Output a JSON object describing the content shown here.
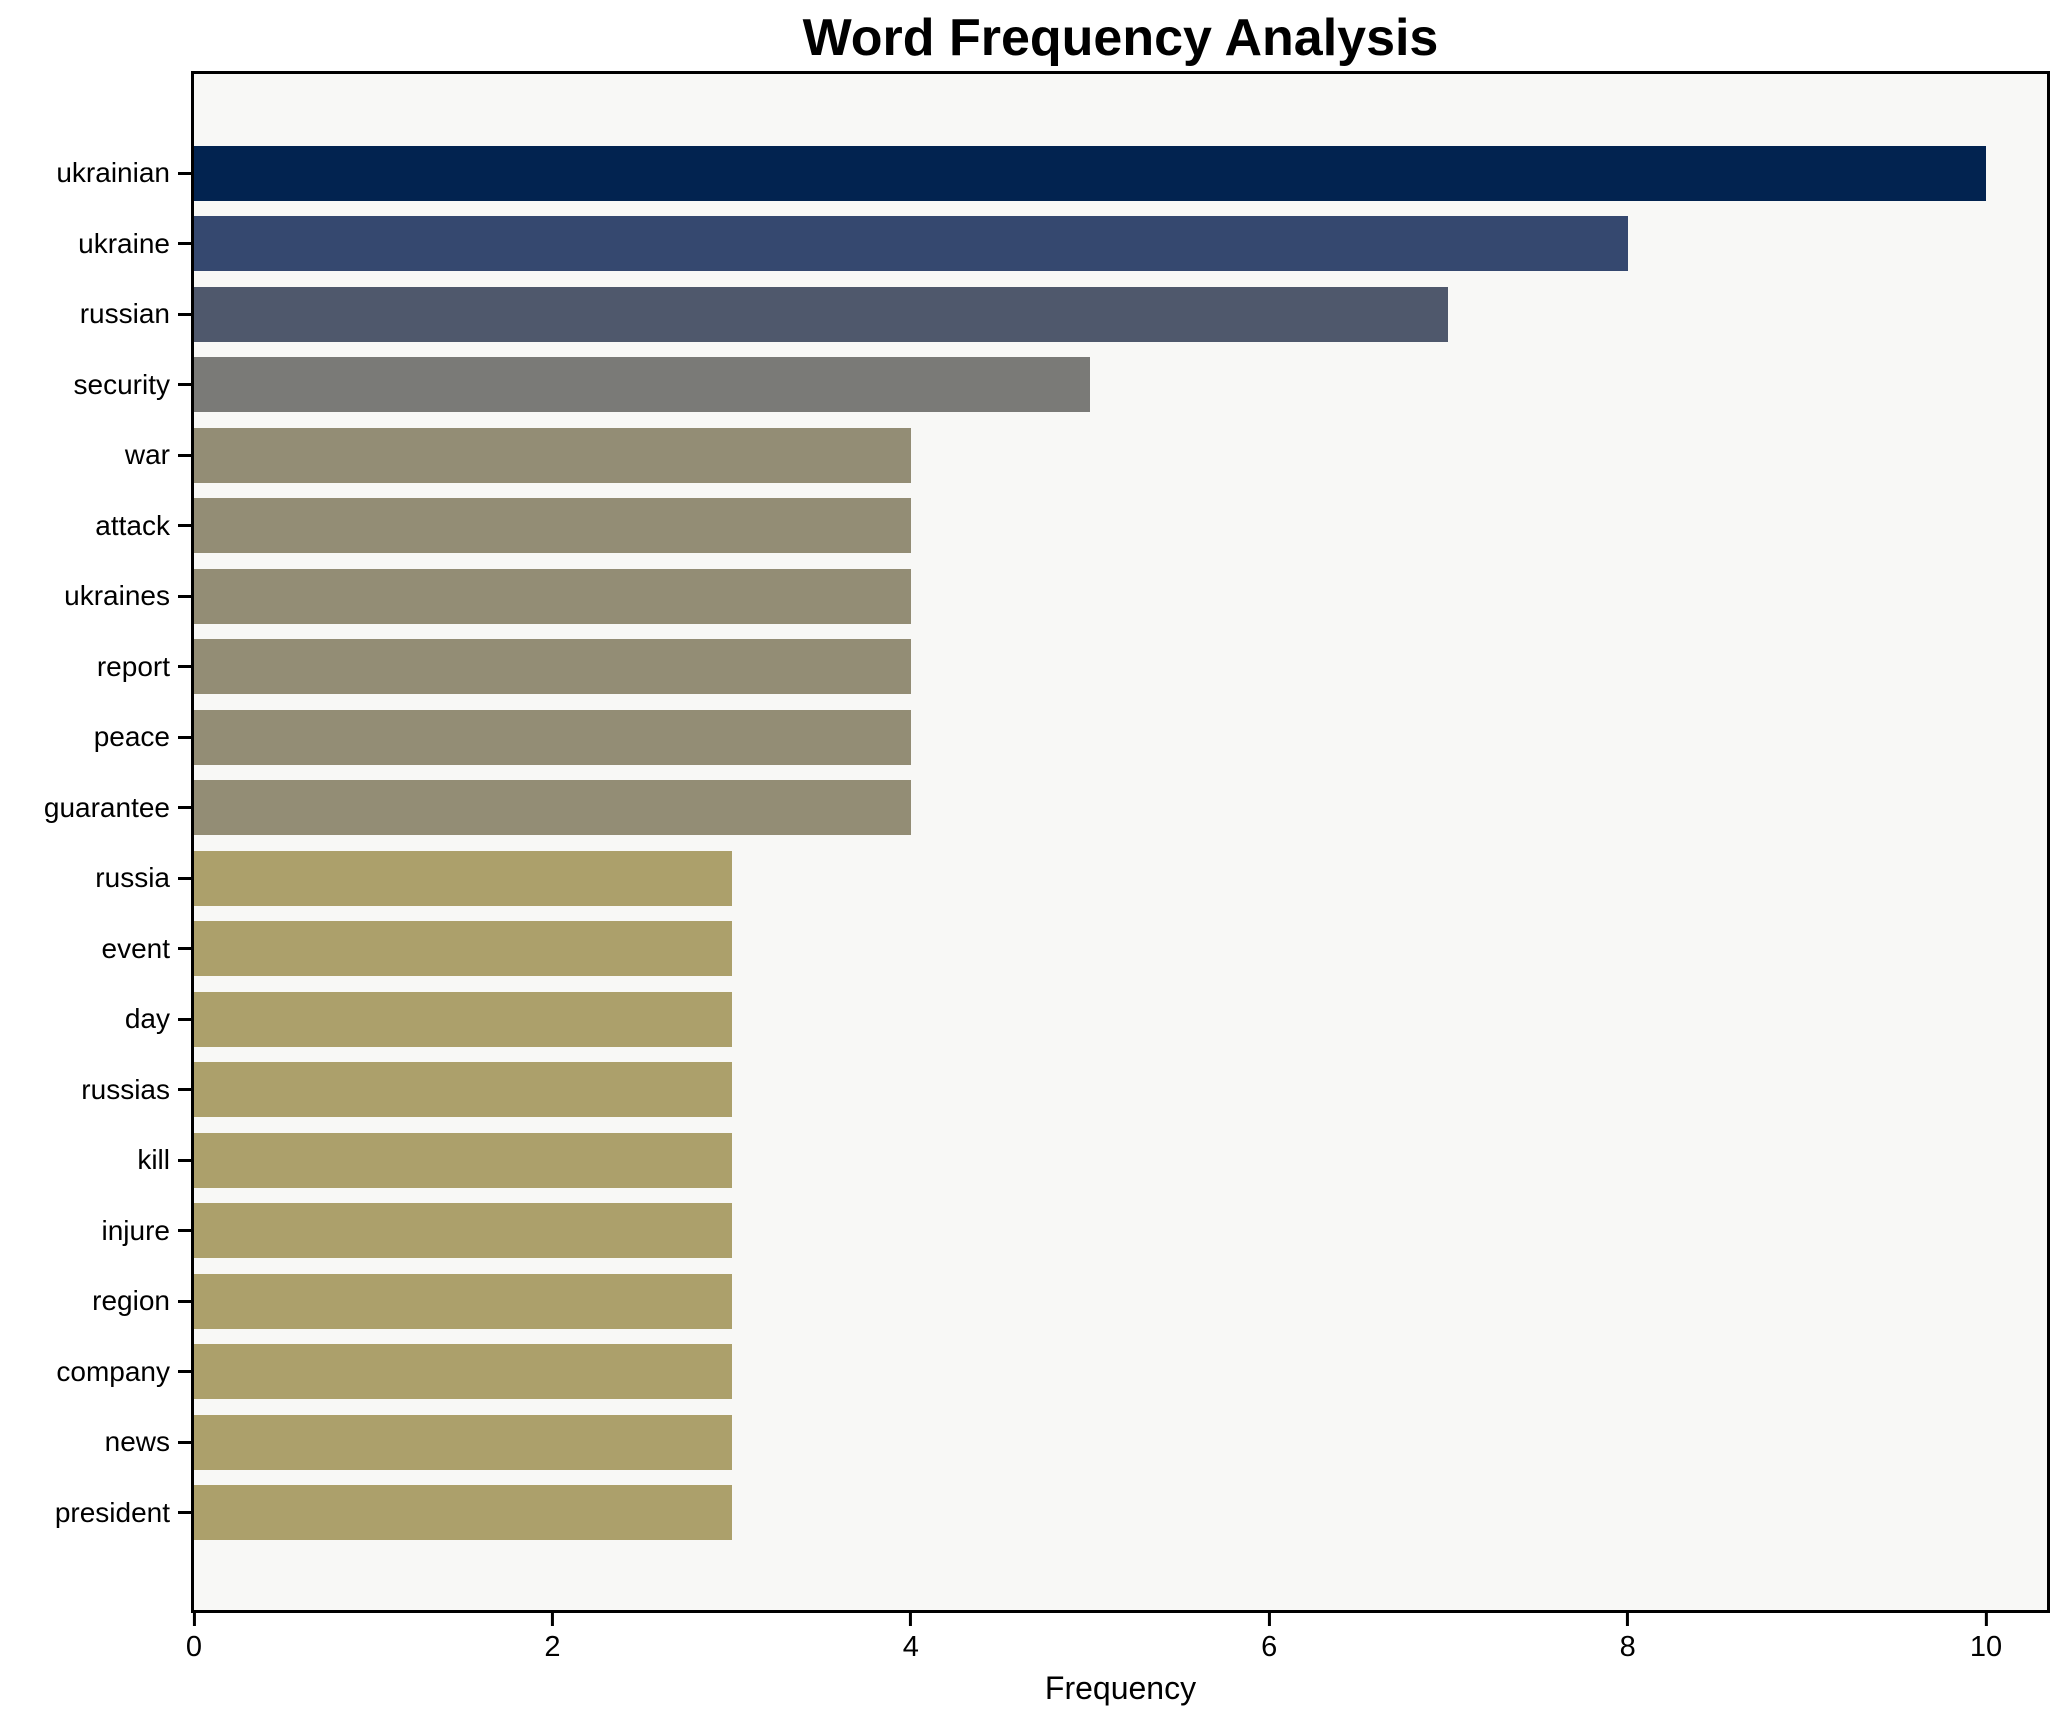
{
  "title": "Word Frequency Analysis",
  "chart_data": {
    "type": "bar",
    "orientation": "horizontal",
    "title": "Word Frequency Analysis",
    "xlabel": "Frequency",
    "ylabel": "",
    "categories": [
      "ukrainian",
      "ukraine",
      "russian",
      "security",
      "war",
      "attack",
      "ukraines",
      "report",
      "peace",
      "guarantee",
      "russia",
      "event",
      "day",
      "russias",
      "kill",
      "injure",
      "region",
      "company",
      "news",
      "president"
    ],
    "values": [
      10,
      8,
      7,
      5,
      4,
      4,
      4,
      4,
      4,
      4,
      3,
      3,
      3,
      3,
      3,
      3,
      3,
      3,
      3,
      3
    ],
    "bar_colors": [
      "#022350",
      "#35486f",
      "#4f586c",
      "#7a7a77",
      "#938d75",
      "#938d75",
      "#938d75",
      "#938d75",
      "#938d75",
      "#938d75",
      "#aca06b",
      "#aca06b",
      "#aca06b",
      "#aca06b",
      "#aca06b",
      "#aca06b",
      "#aca06b",
      "#aca06b",
      "#aca06b",
      "#aca06b"
    ],
    "x_ticks": [
      0,
      2,
      4,
      6,
      8,
      10
    ],
    "xlim": [
      0,
      10.34
    ],
    "grid": false,
    "legend": "none"
  },
  "colors": {
    "figure_bg": "#ffffff",
    "plot_bg": "#f8f8f6",
    "spine": "#000000",
    "text": "#000000"
  }
}
